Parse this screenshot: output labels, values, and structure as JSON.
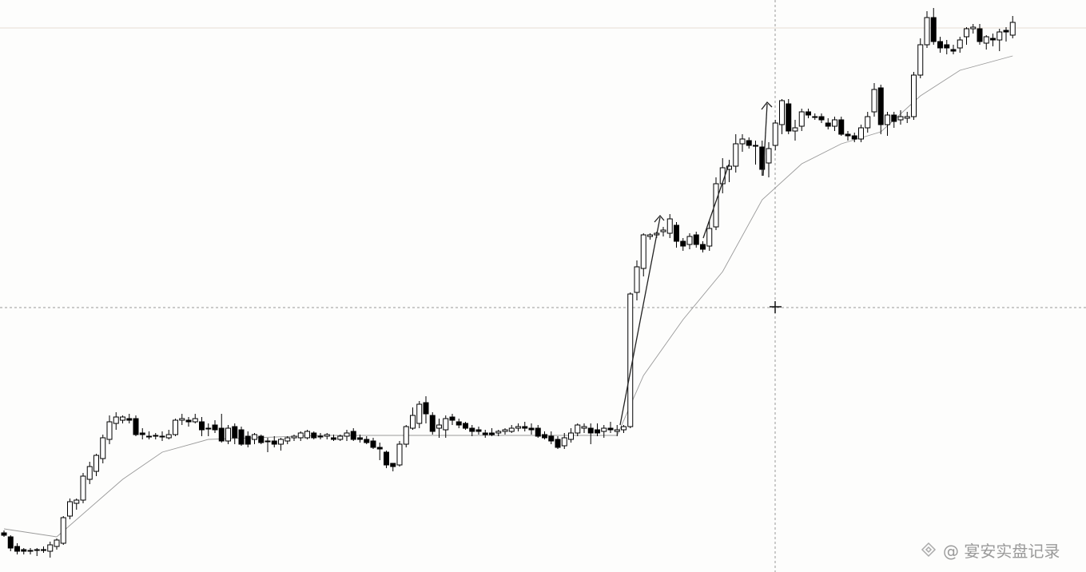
{
  "chart_data": {
    "type": "candlestick",
    "open": [
      49,
      44,
      32,
      28,
      26,
      27,
      28,
      26,
      32,
      36,
      70,
      86,
      90,
      116,
      126,
      142,
      166,
      186,
      190,
      192,
      192,
      174,
      170,
      170,
      170,
      168,
      172,
      190,
      190,
      188,
      188,
      180,
      184,
      180,
      164,
      182,
      178,
      170,
      166,
      170,
      164,
      164,
      160,
      164,
      168,
      168,
      168,
      174,
      170,
      170,
      168,
      166,
      170,
      176,
      168,
      166,
      164,
      156,
      150,
      136,
      134,
      160,
      180,
      186,
      212,
      196,
      180,
      178,
      194,
      188,
      186,
      180,
      178,
      174,
      174,
      174,
      176,
      176,
      180,
      182,
      180,
      180,
      172,
      170,
      166,
      158,
      166,
      174,
      180,
      180,
      178,
      176,
      180,
      176,
      178,
      182,
      350,
      380,
      420,
      422,
      426,
      424,
      434,
      414,
      410,
      422,
      410,
      408,
      432,
      486,
      504,
      508,
      536,
      540,
      534,
      532,
      512,
      534,
      560,
      586,
      552,
      558,
      576,
      570,
      570,
      562,
      558,
      566,
      548,
      546,
      542,
      556,
      576,
      606,
      560,
      572,
      566,
      568,
      570,
      622,
      660,
      694,
      664,
      660,
      654,
      656,
      670,
      680,
      680,
      662,
      668,
      666,
      678,
      672
    ],
    "high": [
      52,
      46,
      36,
      30,
      30,
      30,
      32,
      38,
      42,
      70,
      92,
      92,
      124,
      138,
      148,
      172,
      196,
      200,
      196,
      198,
      196,
      180,
      176,
      174,
      176,
      178,
      192,
      198,
      194,
      198,
      194,
      186,
      190,
      198,
      184,
      186,
      182,
      176,
      174,
      172,
      168,
      170,
      168,
      170,
      172,
      176,
      178,
      176,
      174,
      174,
      172,
      172,
      178,
      180,
      172,
      170,
      168,
      162,
      152,
      136,
      164,
      184,
      206,
      214,
      220,
      200,
      192,
      196,
      198,
      192,
      188,
      184,
      182,
      178,
      180,
      178,
      180,
      184,
      186,
      188,
      186,
      184,
      176,
      176,
      170,
      174,
      180,
      186,
      186,
      186,
      186,
      184,
      188,
      184,
      184,
      350,
      390,
      424,
      424,
      426,
      432,
      448,
      438,
      418,
      424,
      426,
      414,
      440,
      494,
      518,
      516,
      548,
      548,
      544,
      540,
      540,
      538,
      566,
      592,
      592,
      566,
      580,
      580,
      574,
      574,
      568,
      570,
      570,
      552,
      550,
      560,
      576,
      612,
      610,
      576,
      576,
      578,
      576,
      626,
      668,
      702,
      706,
      670,
      666,
      660,
      670,
      682,
      686,
      686,
      672,
      674,
      680,
      682,
      696
    ],
    "low": [
      44,
      26,
      22,
      22,
      22,
      20,
      24,
      18,
      28,
      34,
      66,
      78,
      86,
      110,
      120,
      136,
      160,
      178,
      186,
      186,
      170,
      166,
      166,
      166,
      164,
      166,
      170,
      184,
      182,
      186,
      170,
      170,
      174,
      162,
      160,
      160,
      158,
      156,
      160,
      160,
      150,
      156,
      152,
      160,
      164,
      164,
      166,
      166,
      166,
      166,
      164,
      164,
      164,
      164,
      162,
      160,
      154,
      140,
      130,
      126,
      132,
      156,
      178,
      180,
      186,
      172,
      168,
      168,
      184,
      180,
      178,
      170,
      172,
      168,
      170,
      170,
      172,
      174,
      176,
      176,
      172,
      168,
      166,
      160,
      154,
      154,
      162,
      170,
      174,
      160,
      170,
      168,
      174,
      170,
      174,
      180,
      340,
      370,
      416,
      418,
      420,
      418,
      406,
      402,
      404,
      406,
      400,
      402,
      428,
      474,
      488,
      500,
      526,
      530,
      510,
      496,
      494,
      528,
      548,
      548,
      540,
      552,
      568,
      566,
      562,
      554,
      552,
      546,
      540,
      538,
      538,
      550,
      570,
      548,
      546,
      556,
      560,
      562,
      566,
      618,
      656,
      660,
      650,
      648,
      648,
      650,
      660,
      674,
      660,
      654,
      658,
      652,
      664,
      668
    ],
    "close": [
      46,
      30,
      26,
      26,
      27,
      28,
      27,
      34,
      40,
      68,
      88,
      90,
      120,
      132,
      146,
      168,
      188,
      194,
      194,
      190,
      172,
      172,
      170,
      171,
      170,
      172,
      190,
      192,
      188,
      192,
      178,
      180,
      178,
      164,
      180,
      168,
      160,
      160,
      172,
      162,
      164,
      160,
      166,
      168,
      170,
      174,
      176,
      168,
      170,
      172,
      166,
      170,
      174,
      166,
      166,
      162,
      156,
      154,
      134,
      132,
      160,
      182,
      196,
      210,
      198,
      176,
      184,
      192,
      190,
      184,
      180,
      176,
      176,
      172,
      172,
      176,
      178,
      180,
      182,
      180,
      178,
      170,
      168,
      164,
      156,
      168,
      174,
      184,
      182,
      174,
      174,
      180,
      178,
      178,
      182,
      348,
      382,
      422,
      422,
      424,
      428,
      442,
      414,
      408,
      420,
      410,
      404,
      430,
      486,
      506,
      508,
      536,
      542,
      534,
      534,
      504,
      530,
      562,
      590,
      552,
      556,
      576,
      572,
      570,
      566,
      558,
      566,
      548,
      546,
      542,
      556,
      570,
      604,
      560,
      572,
      564,
      570,
      570,
      622,
      660,
      694,
      664,
      656,
      656,
      652,
      666,
      680,
      682,
      664,
      670,
      666,
      676,
      676,
      688
    ],
    "ma": {
      "x": [
        0,
        8,
        18,
        24,
        31,
        48,
        93,
        97,
        103,
        109,
        115,
        121,
        127,
        133,
        139,
        145,
        153
      ],
      "values": [
        54,
        44,
        116,
        150,
        166,
        171,
        171,
        246,
        316,
        376,
        466,
        511,
        536,
        551,
        596,
        628,
        646
      ]
    },
    "up_color": "#ffffff",
    "down_color": "#000000",
    "ma_color": "#9a9a9a",
    "ylim": [
      0,
      716
    ]
  },
  "watermark": "@ 宴安实盘记录"
}
